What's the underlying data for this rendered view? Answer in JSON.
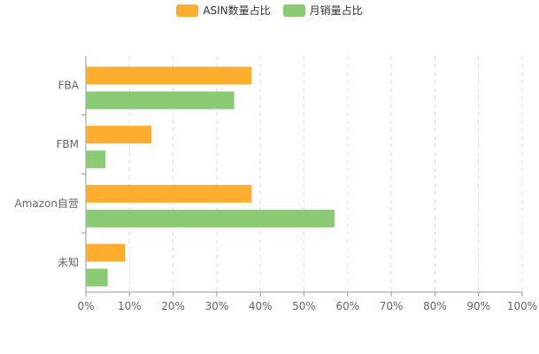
{
  "chart_data": {
    "type": "bar",
    "orientation": "horizontal",
    "categories": [
      "FBA",
      "FBM",
      "Amazon自营",
      "未知"
    ],
    "series": [
      {
        "name": "ASIN数量占比",
        "color": "#FFAD2F",
        "values": [
          38,
          15,
          38,
          9
        ]
      },
      {
        "name": "月销量占比",
        "color": "#8CCB76",
        "values": [
          34,
          4.5,
          57,
          5
        ]
      }
    ],
    "xlim": [
      0,
      100
    ],
    "x_ticks": [
      "0%",
      "10%",
      "20%",
      "30%",
      "40%",
      "50%",
      "60%",
      "70%",
      "80%",
      "90%",
      "100%"
    ],
    "grid": "vertical-dashed",
    "legend": "top-center"
  }
}
